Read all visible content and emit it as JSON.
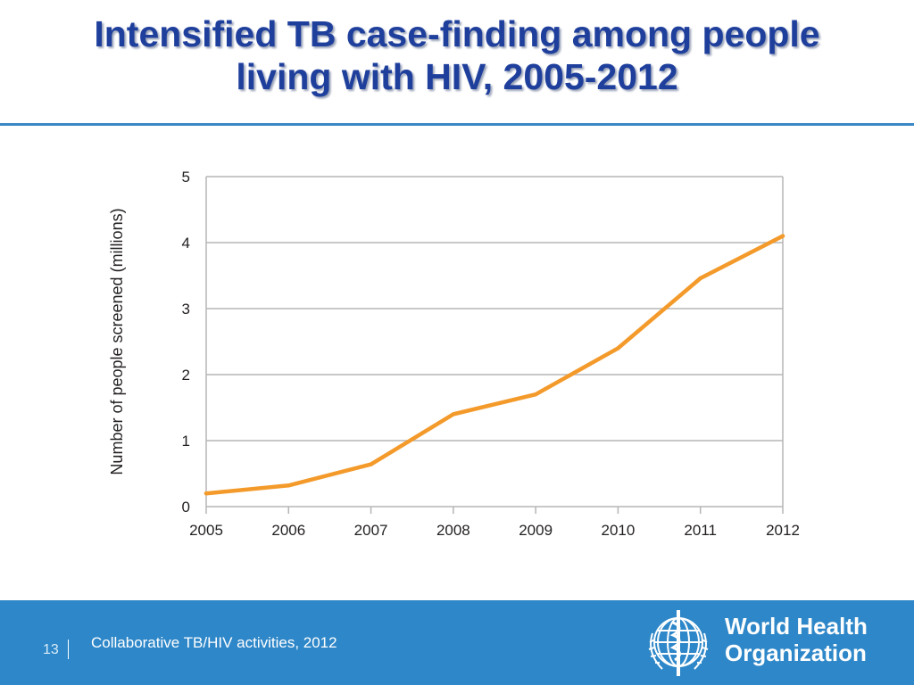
{
  "slide": {
    "title_line1": "Intensified TB case-finding among people",
    "title_line2": "living with HIV, 2005-2012"
  },
  "footer": {
    "page_number": "13",
    "caption": "Collaborative TB/HIV activities, 2012",
    "org_name_line1": "World Health",
    "org_name_line2": "Organization"
  },
  "chart_data": {
    "type": "line",
    "title": "",
    "xlabel": "",
    "ylabel": "Number of people screened (millions)",
    "x": [
      2005,
      2006,
      2007,
      2008,
      2009,
      2010,
      2011,
      2012
    ],
    "series": [
      {
        "values": [
          0.2,
          0.32,
          0.64,
          1.4,
          1.7,
          2.4,
          3.46,
          4.1
        ]
      }
    ],
    "ylim": [
      0,
      5
    ],
    "yticks": [
      0,
      1,
      2,
      3,
      4,
      5
    ],
    "grid": true,
    "line_color": "#f39a2b",
    "grid_color": "#b5b5b5",
    "axis_text_color": "#231f20"
  },
  "colors": {
    "title": "#1f3f9c",
    "footer_bar": "#2e87c8"
  }
}
